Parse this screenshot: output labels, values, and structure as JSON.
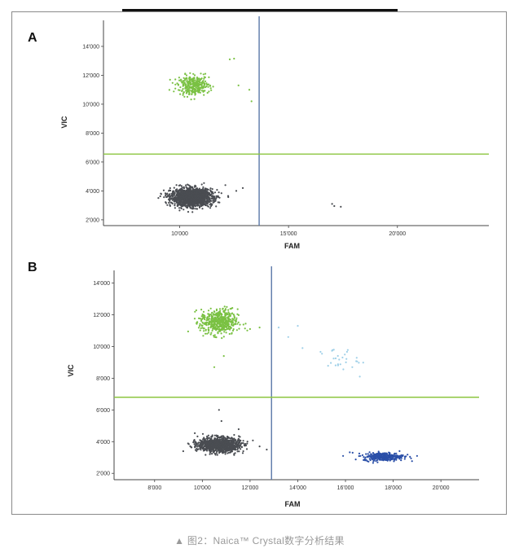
{
  "figure": {
    "caption": "▲ 图2：Naica™ Crystal数字分析结果"
  },
  "chart_data": [
    {
      "type": "scatter",
      "panel_label": "A",
      "xlabel": "FAM",
      "ylabel": "VIC",
      "xlim": [
        6500,
        24200
      ],
      "ylim": [
        1600,
        15800
      ],
      "xticks": [
        {
          "v": 10000,
          "label": "10'000"
        },
        {
          "v": 15000,
          "label": "15'000"
        },
        {
          "v": 20000,
          "label": "20'000"
        }
      ],
      "yticks": [
        {
          "v": 2000,
          "label": "2'000"
        },
        {
          "v": 4000,
          "label": "4'000"
        },
        {
          "v": 6000,
          "label": "6'000"
        },
        {
          "v": 8000,
          "label": "8'000"
        },
        {
          "v": 10000,
          "label": "10'000"
        },
        {
          "v": 12000,
          "label": "12'000"
        },
        {
          "v": 14000,
          "label": "14'000"
        }
      ],
      "thresholds": {
        "x": 13650,
        "y": 6550
      },
      "threshold_colors": {
        "x": "#5a78a8",
        "y": "#8cc63f"
      },
      "clusters": [
        {
          "color": "#4a4d52",
          "cx": 10550,
          "cy": 3550,
          "sx": 470,
          "sy": 300,
          "n": 1600
        },
        {
          "color": "#7ac143",
          "cx": 10650,
          "cy": 11300,
          "sx": 360,
          "sy": 330,
          "n": 320
        }
      ],
      "extra_points": [
        {
          "x": 12300,
          "y": 13100,
          "color": "#7ac143"
        },
        {
          "x": 12500,
          "y": 13150,
          "color": "#7ac143"
        },
        {
          "x": 12700,
          "y": 11300,
          "color": "#7ac143"
        },
        {
          "x": 13200,
          "y": 11000,
          "color": "#7ac143"
        },
        {
          "x": 13300,
          "y": 10200,
          "color": "#7ac143"
        },
        {
          "x": 12100,
          "y": 4400,
          "color": "#4a4d52"
        },
        {
          "x": 12600,
          "y": 4000,
          "color": "#4a4d52"
        },
        {
          "x": 12900,
          "y": 4200,
          "color": "#4a4d52"
        },
        {
          "x": 17000,
          "y": 3100,
          "color": "#4a4d52"
        },
        {
          "x": 17100,
          "y": 2950,
          "color": "#4a4d52"
        },
        {
          "x": 17400,
          "y": 2900,
          "color": "#4a4d52"
        }
      ]
    },
    {
      "type": "scatter",
      "panel_label": "B",
      "xlabel": "FAM",
      "ylabel": "VIC",
      "xlim": [
        6300,
        21600
      ],
      "ylim": [
        1600,
        14800
      ],
      "xticks": [
        {
          "v": 8000,
          "label": "8'000"
        },
        {
          "v": 10000,
          "label": "10'000"
        },
        {
          "v": 12000,
          "label": "12'000"
        },
        {
          "v": 14000,
          "label": "14'000"
        },
        {
          "v": 16000,
          "label": "16'000"
        },
        {
          "v": 18000,
          "label": "18'000"
        },
        {
          "v": 20000,
          "label": "20'000"
        }
      ],
      "yticks": [
        {
          "v": 2000,
          "label": "2'000"
        },
        {
          "v": 4000,
          "label": "4'000"
        },
        {
          "v": 6000,
          "label": "6'000"
        },
        {
          "v": 8000,
          "label": "8'000"
        },
        {
          "v": 10000,
          "label": "10'000"
        },
        {
          "v": 12000,
          "label": "12'000"
        },
        {
          "v": 14000,
          "label": "14'000"
        }
      ],
      "thresholds": {
        "x": 12900,
        "y": 6800
      },
      "threshold_colors": {
        "x": "#5a78a8",
        "y": "#8cc63f"
      },
      "clusters": [
        {
          "color": "#4a4d52",
          "cx": 10700,
          "cy": 3800,
          "sx": 430,
          "sy": 230,
          "n": 1100
        },
        {
          "color": "#7ac143",
          "cx": 10700,
          "cy": 11550,
          "sx": 390,
          "sy": 400,
          "n": 480
        },
        {
          "color": "#2a4fa8",
          "cx": 17600,
          "cy": 3050,
          "sx": 420,
          "sy": 130,
          "n": 300
        },
        {
          "color": "#9fd0e8",
          "cx": 15700,
          "cy": 9200,
          "sx": 420,
          "sy": 350,
          "n": 28
        }
      ],
      "extra_points": [
        {
          "x": 10700,
          "y": 6000,
          "color": "#4a4d52"
        },
        {
          "x": 10800,
          "y": 5300,
          "color": "#4a4d52"
        },
        {
          "x": 9200,
          "y": 3400,
          "color": "#4a4d52"
        },
        {
          "x": 12400,
          "y": 3700,
          "color": "#4a4d52"
        },
        {
          "x": 12700,
          "y": 3500,
          "color": "#4a4d52"
        },
        {
          "x": 10500,
          "y": 8700,
          "color": "#7ac143"
        },
        {
          "x": 10900,
          "y": 9400,
          "color": "#7ac143"
        },
        {
          "x": 12000,
          "y": 11100,
          "color": "#7ac143"
        },
        {
          "x": 12400,
          "y": 11200,
          "color": "#7ac143"
        },
        {
          "x": 13200,
          "y": 11200,
          "color": "#9fd0e8"
        },
        {
          "x": 13600,
          "y": 10600,
          "color": "#9fd0e8"
        },
        {
          "x": 14000,
          "y": 11300,
          "color": "#9fd0e8"
        },
        {
          "x": 14200,
          "y": 9900,
          "color": "#9fd0e8"
        },
        {
          "x": 16600,
          "y": 8100,
          "color": "#9fd0e8"
        },
        {
          "x": 15900,
          "y": 3100,
          "color": "#2a4fa8"
        },
        {
          "x": 16300,
          "y": 3300,
          "color": "#2a4fa8"
        },
        {
          "x": 19000,
          "y": 3100,
          "color": "#2a4fa8"
        }
      ]
    }
  ]
}
